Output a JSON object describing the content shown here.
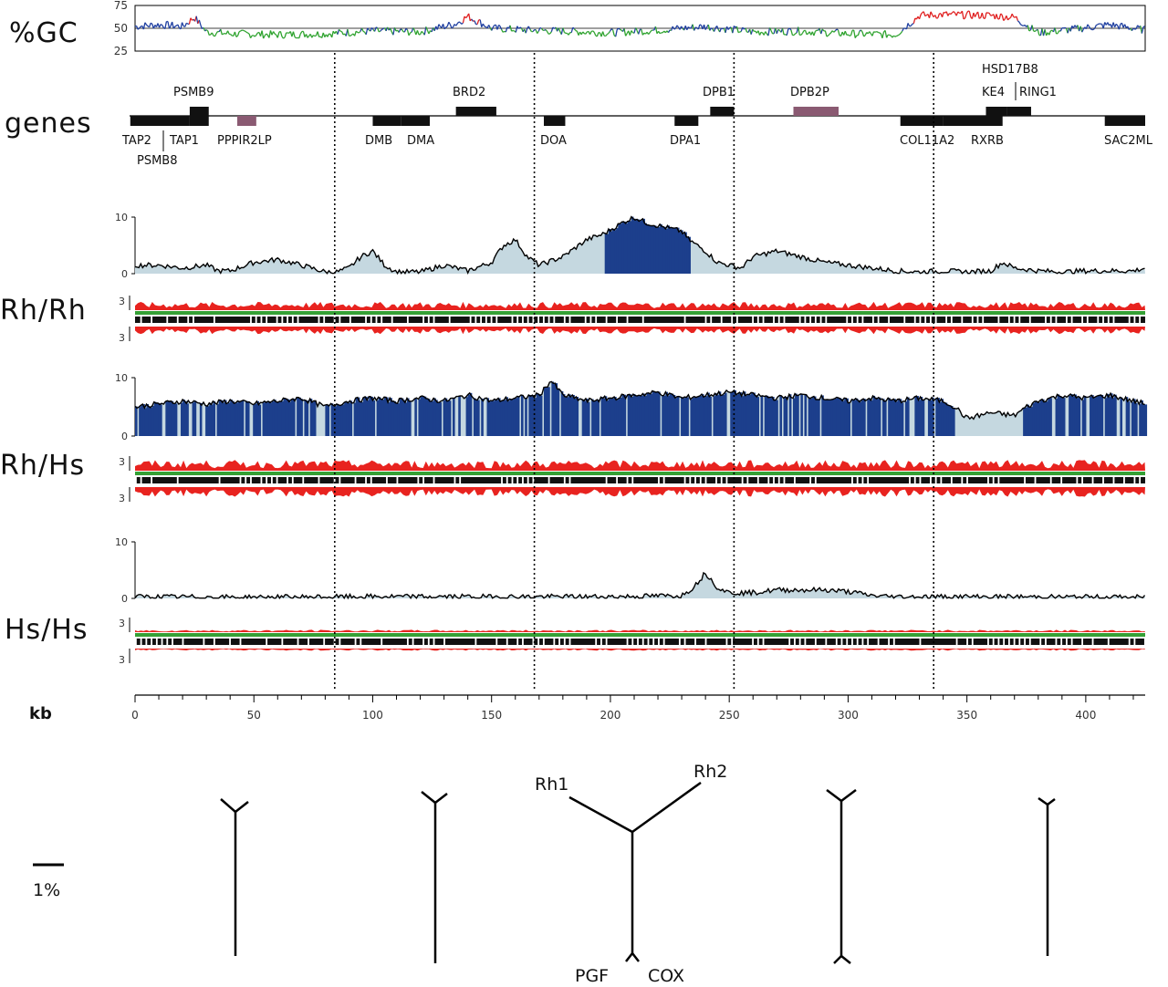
{
  "figure": {
    "row_labels": {
      "gc": "%GC",
      "genes": "genes",
      "rh_rh": "Rh/Rh",
      "rh_hs": "Rh/Hs",
      "hs_hs": "Hs/Hs",
      "kb": "kb"
    },
    "scale_bar_label": "1%"
  },
  "chart_data": [
    {
      "type": "line",
      "id": "gc_content",
      "ylabel": "%GC",
      "yticks": [
        25,
        50,
        75
      ],
      "ylim": [
        25,
        75
      ],
      "xlim": [
        0,
        425
      ],
      "colors": {
        "low": "#2fa32f",
        "mid": "#1f3fa0",
        "high": "#e02020",
        "frame": "#000000"
      },
      "series": [
        {
          "x": [
            0,
            10,
            20,
            25,
            30,
            40,
            60,
            80,
            100,
            120,
            135,
            140,
            150,
            165,
            180,
            200,
            220,
            240,
            260,
            280,
            300,
            320,
            330,
            340,
            360,
            370,
            380,
            395,
            410,
            425
          ],
          "values": [
            52,
            54,
            52,
            62,
            46,
            44,
            43,
            44,
            47,
            46,
            55,
            63,
            50,
            48,
            47,
            45,
            48,
            52,
            46,
            47,
            44,
            43,
            64,
            65,
            64,
            62,
            45,
            49,
            54,
            48
          ]
        }
      ]
    },
    {
      "type": "table",
      "id": "genes",
      "xlim": [
        0,
        425
      ],
      "genes_below": [
        {
          "name": "TAP2",
          "start": -2,
          "end": 23
        },
        {
          "name": "TAP1",
          "start": 23,
          "end": 31
        },
        {
          "name": "PPPIR2LP",
          "start": 43,
          "end": 51,
          "pseudo": true
        },
        {
          "name": "DMB",
          "start": 100,
          "end": 112
        },
        {
          "name": "DMA",
          "start": 112,
          "end": 124
        },
        {
          "name": "DOA",
          "start": 172,
          "end": 181
        },
        {
          "name": "DPA1",
          "start": 227,
          "end": 237
        },
        {
          "name": "COL11A2",
          "start": 322,
          "end": 340
        },
        {
          "name": "RXRB",
          "start": 340,
          "end": 365
        },
        {
          "name": "SAC2ML",
          "start": 408,
          "end": 425
        }
      ],
      "genes_above": [
        {
          "name": "PSMB9",
          "start": 23,
          "end": 31
        },
        {
          "name": "BRD2",
          "start": 135,
          "end": 152
        },
        {
          "name": "DPB1",
          "start": 242,
          "end": 252
        },
        {
          "name": "DPB2P",
          "start": 277,
          "end": 296,
          "pseudo": true
        },
        {
          "name": "KE4",
          "start": 358,
          "end": 367
        },
        {
          "name": "RING1",
          "start": 367,
          "end": 377
        }
      ],
      "labels_above_extra": [
        "HSD17B8"
      ],
      "labels_below_extra": [
        "PSMB8"
      ]
    },
    {
      "type": "area",
      "id": "rh_rh_divergence",
      "yticks": [
        0,
        10
      ],
      "ylim": [
        0,
        10
      ],
      "xlim": [
        0,
        425
      ],
      "highlight": [
        197,
        233
      ],
      "colors": {
        "fill": "#c5d8e0",
        "highlight": "#1c3f8c",
        "line": "#000000"
      },
      "series": [
        {
          "x": [
            0,
            10,
            20,
            30,
            35,
            40,
            50,
            60,
            70,
            80,
            85,
            90,
            95,
            100,
            105,
            110,
            120,
            130,
            140,
            150,
            155,
            160,
            165,
            170,
            180,
            190,
            197,
            205,
            210,
            215,
            220,
            225,
            230,
            233,
            240,
            245,
            250,
            255,
            260,
            270,
            280,
            290,
            300,
            310,
            320,
            330,
            340,
            350,
            360,
            365,
            370,
            380,
            390,
            400,
            410,
            420,
            425
          ],
          "values": [
            1.5,
            1.5,
            1,
            1.5,
            0.5,
            0.5,
            2,
            2.5,
            1.5,
            0.3,
            0.3,
            1,
            3,
            4,
            1.5,
            0.3,
            0.3,
            1.5,
            0.5,
            2,
            5,
            6,
            3,
            1.5,
            3,
            6,
            7,
            9,
            10,
            9,
            8.5,
            8,
            7.5,
            6,
            4,
            2,
            1.5,
            1,
            3,
            4,
            3,
            2,
            1.5,
            1,
            0.5,
            0.3,
            0.5,
            0.3,
            0.5,
            2,
            1,
            0.5,
            0.3,
            0.5,
            0.5,
            0.5,
            1
          ]
        }
      ]
    },
    {
      "type": "area",
      "id": "rh_hs_divergence",
      "yticks": [
        0,
        10
      ],
      "ylim": [
        0,
        10
      ],
      "xlim": [
        0,
        425
      ],
      "highlight": [
        0,
        345,
        373,
        425
      ],
      "colors": {
        "fill": "#c5d8e0",
        "highlight": "#1c3f8c",
        "line": "#000000"
      },
      "series": [
        {
          "x": [
            0,
            10,
            20,
            30,
            40,
            50,
            60,
            70,
            80,
            90,
            100,
            110,
            120,
            130,
            140,
            150,
            160,
            170,
            175,
            180,
            190,
            200,
            210,
            220,
            230,
            240,
            250,
            260,
            270,
            280,
            290,
            300,
            310,
            320,
            330,
            340,
            345,
            350,
            360,
            370,
            375,
            380,
            390,
            400,
            410,
            420,
            425
          ],
          "values": [
            5,
            5.5,
            6,
            5.5,
            6,
            5.5,
            6,
            6.5,
            5,
            6,
            6.5,
            6,
            6.5,
            6,
            7,
            6,
            6.5,
            7,
            9.5,
            7,
            6,
            6.5,
            7,
            7.5,
            6.5,
            7,
            7.5,
            7,
            6.5,
            7,
            6.5,
            6,
            6.5,
            6,
            6.5,
            6,
            5,
            3,
            4,
            3.5,
            5,
            6,
            7,
            6.5,
            7,
            6,
            5.5
          ]
        }
      ]
    },
    {
      "type": "area",
      "id": "hs_hs_divergence",
      "yticks": [
        0,
        10
      ],
      "ylim": [
        0,
        10
      ],
      "xlim": [
        0,
        425
      ],
      "colors": {
        "fill": "#c5d8e0",
        "line": "#000000"
      },
      "series": [
        {
          "x": [
            0,
            50,
            100,
            150,
            200,
            230,
            235,
            240,
            245,
            250,
            260,
            270,
            280,
            290,
            300,
            310,
            320,
            350,
            425
          ],
          "values": [
            0.3,
            0.2,
            0.3,
            0.3,
            0.3,
            0.5,
            2,
            4.5,
            2,
            1,
            1,
            1.5,
            1.5,
            1.5,
            1.2,
            0.5,
            0.3,
            0.3,
            0.2
          ]
        }
      ]
    },
    {
      "type": "line",
      "id": "kb_axis",
      "xlabel": "kb",
      "xlim": [
        0,
        425
      ],
      "xticks": [
        0,
        50,
        100,
        150,
        200,
        250,
        300,
        350,
        400
      ],
      "boundaries": [
        84,
        168,
        252,
        336
      ]
    }
  ],
  "trees": {
    "labels": {
      "rh1": "Rh1",
      "rh2": "Rh2",
      "pgf": "PGF",
      "cox": "COX"
    }
  }
}
